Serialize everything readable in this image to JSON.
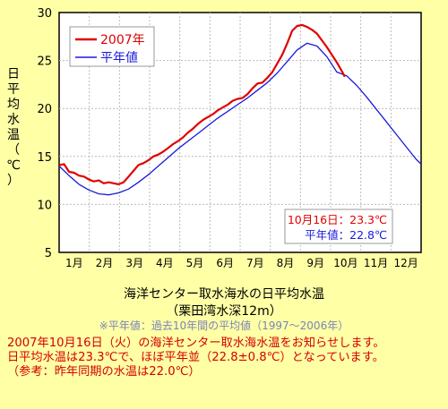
{
  "chart_data": {
    "type": "line",
    "ylabel": "日平均水温（℃）",
    "ylim": [
      5,
      30
    ],
    "yticks": [
      5,
      10,
      15,
      20,
      25,
      30
    ],
    "xlim": [
      0,
      365
    ],
    "months": [
      "1月",
      "2月",
      "3月",
      "4月",
      "5月",
      "6月",
      "7月",
      "8月",
      "9月",
      "10月",
      "11月",
      "12月"
    ],
    "grid": true,
    "legend_position": "top-left",
    "series": [
      {
        "name": "2007年",
        "color": "#e00000",
        "x": [
          0,
          5,
          10,
          15,
          20,
          25,
          30,
          35,
          40,
          45,
          50,
          55,
          60,
          65,
          70,
          75,
          80,
          85,
          90,
          95,
          100,
          105,
          110,
          115,
          120,
          125,
          130,
          135,
          140,
          145,
          150,
          155,
          160,
          165,
          170,
          175,
          180,
          185,
          190,
          195,
          200,
          205,
          210,
          215,
          220,
          225,
          230,
          235,
          240,
          245,
          250,
          255,
          260,
          265,
          270,
          275,
          280,
          285,
          288
        ],
        "values": [
          14.1,
          14.2,
          13.4,
          13.3,
          13.0,
          12.9,
          12.6,
          12.4,
          12.5,
          12.2,
          12.3,
          12.2,
          12.1,
          12.3,
          12.9,
          13.5,
          14.1,
          14.3,
          14.6,
          15.0,
          15.2,
          15.5,
          15.9,
          16.3,
          16.6,
          17.0,
          17.5,
          17.9,
          18.4,
          18.8,
          19.1,
          19.4,
          19.8,
          20.1,
          20.4,
          20.8,
          21.0,
          21.1,
          21.5,
          22.1,
          22.6,
          22.7,
          23.2,
          23.8,
          24.7,
          25.6,
          26.8,
          28.1,
          28.6,
          28.7,
          28.5,
          28.2,
          27.8,
          27.1,
          26.4,
          25.6,
          24.8,
          23.9,
          23.3
        ]
      },
      {
        "name": "平年値",
        "color": "#1a1adc",
        "x": [
          0,
          10,
          20,
          30,
          40,
          50,
          60,
          70,
          80,
          90,
          100,
          110,
          120,
          130,
          140,
          150,
          160,
          170,
          180,
          190,
          200,
          210,
          220,
          230,
          240,
          250,
          260,
          270,
          280,
          290,
          300,
          310,
          320,
          330,
          340,
          350,
          360,
          365
        ],
        "values": [
          14.0,
          13.0,
          12.1,
          11.5,
          11.1,
          11.0,
          11.2,
          11.6,
          12.3,
          13.1,
          14.0,
          14.9,
          15.8,
          16.6,
          17.4,
          18.2,
          19.0,
          19.7,
          20.4,
          21.1,
          21.9,
          22.7,
          23.7,
          24.9,
          26.1,
          26.8,
          26.5,
          25.4,
          23.8,
          23.4,
          22.4,
          21.2,
          19.9,
          18.6,
          17.3,
          16.0,
          14.7,
          14.2
        ]
      }
    ],
    "annotation": {
      "date_text": "10月16日：23.3℃",
      "normal_text": "平年値：22.8℃"
    }
  },
  "caption": {
    "title": "海洋センター取水海水の日平均水温",
    "subtitle": "（栗田湾水深12m）",
    "note": "※平年値：過去10年間の平均値（1997～2006年）"
  },
  "notice": {
    "line1": "2007年10月16日（火）の海洋センター取水海水温をお知らせします。",
    "line2": "日平均水温は23.3℃で、ほぼ平年並（22.8±0.8℃）となっています。",
    "line3": "（参考：昨年同期の水温は22.0℃）"
  }
}
